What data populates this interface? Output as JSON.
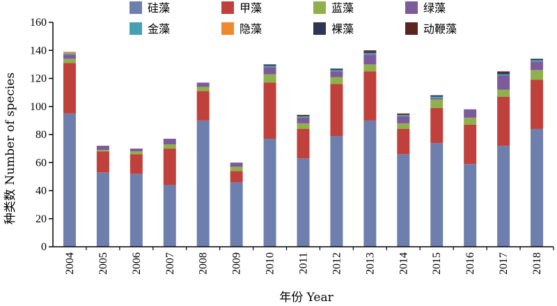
{
  "chart_data": {
    "type": "bar",
    "stacked": true,
    "xlabel": "年份 Year",
    "ylabel": "种类数 Number of species",
    "ylim": [
      0,
      160
    ],
    "yticks": [
      0,
      20,
      40,
      60,
      80,
      100,
      120,
      140,
      160
    ],
    "grid": false,
    "legend_position": "top",
    "categories": [
      "2004",
      "2005",
      "2006",
      "2007",
      "2008",
      "2009",
      "2010",
      "2011",
      "2012",
      "2013",
      "2014",
      "2015",
      "2016",
      "2017",
      "2018"
    ],
    "series": [
      {
        "name": "硅藻",
        "color": "#6e7fae",
        "values": [
          95,
          53,
          52,
          44,
          90,
          46,
          77,
          63,
          79,
          90,
          66,
          74,
          59,
          72,
          84
        ]
      },
      {
        "name": "甲藻",
        "color": "#c0413c",
        "values": [
          36,
          15,
          14,
          26,
          21,
          8,
          40,
          21,
          37,
          35,
          18,
          25,
          28,
          35,
          35
        ]
      },
      {
        "name": "蓝藻",
        "color": "#8fb04a",
        "values": [
          3,
          1,
          2,
          3,
          3,
          3,
          6,
          4,
          5,
          5,
          4,
          6,
          5,
          5,
          7
        ]
      },
      {
        "name": "绿藻",
        "color": "#7d5a9a",
        "values": [
          3,
          3,
          2,
          4,
          3,
          3,
          5,
          4,
          4,
          7,
          5,
          1,
          6,
          10,
          6
        ]
      },
      {
        "name": "金藻",
        "color": "#46a0b4",
        "values": [
          1,
          0,
          0,
          0,
          0,
          0,
          1,
          1,
          1,
          1,
          1,
          1,
          0,
          1,
          1
        ]
      },
      {
        "name": "隐藻",
        "color": "#f0882d",
        "values": [
          1,
          0,
          0,
          0,
          0,
          0,
          0,
          0,
          0,
          0,
          0,
          0,
          0,
          0,
          0
        ]
      },
      {
        "name": "裸藻",
        "color": "#2e3654",
        "values": [
          0,
          0,
          0,
          0,
          0,
          0,
          1,
          0,
          1,
          1,
          0,
          1,
          0,
          1,
          1
        ]
      },
      {
        "name": "动鞭藻",
        "color": "#5a2421",
        "values": [
          0,
          0,
          0,
          0,
          0,
          0,
          0,
          1,
          0,
          1,
          1,
          0,
          0,
          1,
          0
        ]
      }
    ]
  }
}
